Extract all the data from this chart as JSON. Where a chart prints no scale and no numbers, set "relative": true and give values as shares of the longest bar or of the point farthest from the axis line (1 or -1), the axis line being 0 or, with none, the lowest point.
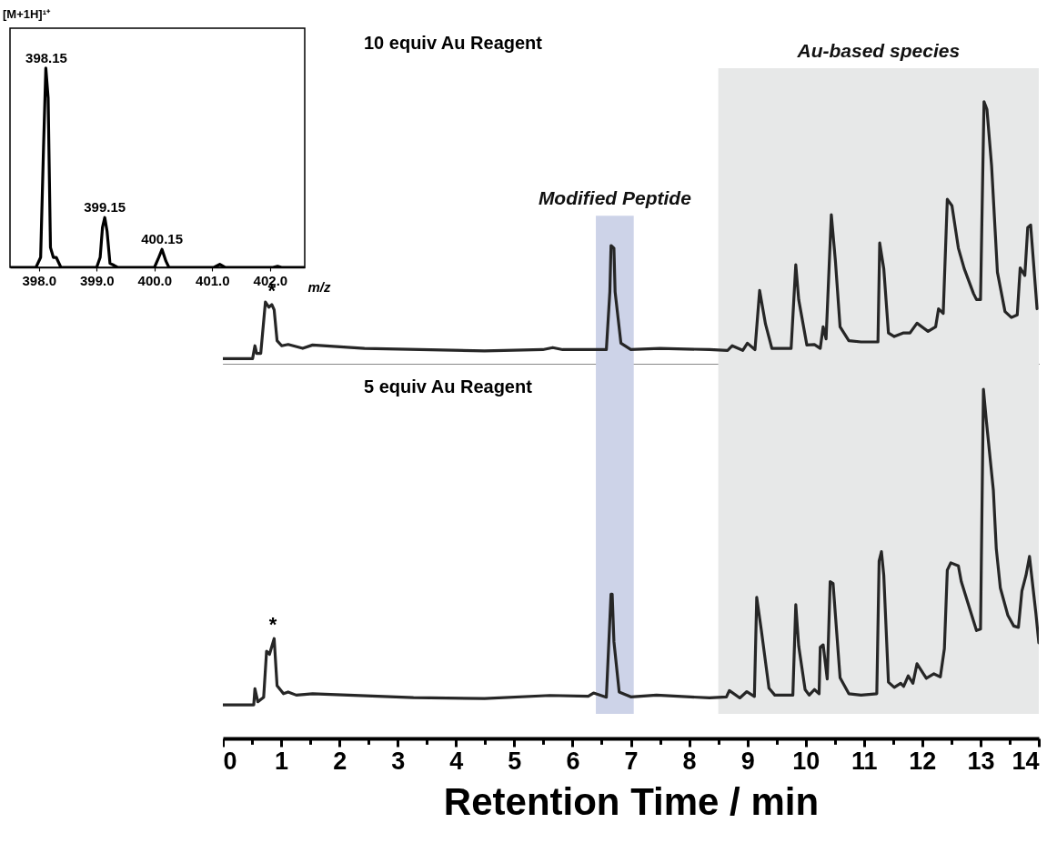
{
  "chart_data": [
    {
      "type": "line",
      "title": "[M+1H]¹⁺",
      "xlabel": "m/z",
      "relative": true,
      "xlim": [
        397.5,
        402.6
      ],
      "xticks": [
        {
          "value": 398,
          "label": "398.0"
        },
        {
          "value": 399,
          "label": "399.0"
        },
        {
          "value": 400,
          "label": "400.0"
        },
        {
          "value": 401,
          "label": "401.0"
        },
        {
          "value": 402,
          "label": "402.0"
        }
      ],
      "x": [
        397.5,
        397.95,
        398.03,
        398.08,
        398.12,
        398.16,
        398.2,
        398.25,
        398.3,
        398.38,
        399.0,
        399.06,
        399.1,
        399.14,
        399.18,
        399.23,
        399.3,
        399.36,
        400.0,
        400.06,
        400.13,
        400.2,
        400.25,
        401.03,
        401.13,
        401.22,
        402.05,
        402.13,
        402.2,
        402.6
      ],
      "series": [
        {
          "color": "#000000",
          "values": [
            0,
            0,
            0.05,
            0.6,
            1,
            0.85,
            0.1,
            0.05,
            0.05,
            0,
            0,
            0.05,
            0.2,
            0.25,
            0.18,
            0.02,
            0.01,
            0,
            0,
            0.04,
            0.09,
            0.03,
            0,
            0,
            0.015,
            0,
            0,
            0.005,
            0,
            0
          ]
        }
      ],
      "annotations": [
        {
          "text": "398.15",
          "x": 398.13,
          "y": 1
        },
        {
          "text": "399.15",
          "x": 399.14,
          "y": 0.25
        },
        {
          "text": "400.15",
          "x": 400.13,
          "y": 0.09
        }
      ]
    },
    {
      "type": "line",
      "title": "10 equiv Au Reagent",
      "relative": true,
      "xlim": [
        0,
        14
      ],
      "tick_labels": false,
      "x": [
        0,
        0.51,
        0.55,
        0.58,
        0.65,
        0.73,
        0.79,
        0.84,
        0.88,
        0.93,
        1.01,
        1.12,
        1.37,
        1.54,
        2.43,
        4.49,
        5.49,
        5.66,
        5.83,
        6.58,
        6.64,
        6.66,
        6.71,
        6.73,
        6.83,
        7.0,
        7.5,
        8.35,
        8.66,
        8.74,
        8.92,
        9.0,
        9.13,
        9.21,
        9.31,
        9.42,
        9.75,
        9.83,
        9.88,
        10.02,
        10.15,
        10.25,
        10.3,
        10.35,
        10.44,
        10.51,
        10.59,
        10.74,
        10.95,
        11.24,
        11.27,
        11.34,
        11.42,
        11.52,
        11.68,
        11.79,
        11.91,
        12.1,
        12.23,
        12.28,
        12.36,
        12.43,
        12.51,
        12.62,
        12.72,
        12.88,
        12.93,
        13.0,
        13.06,
        13.11,
        13.19,
        13.29,
        13.42,
        13.53,
        13.63,
        13.68,
        13.76,
        13.81,
        13.86,
        13.97
      ],
      "series": [
        {
          "color": "#262626",
          "values": [
            0,
            0,
            0.05,
            0.02,
            0.02,
            0.22,
            0.2,
            0.21,
            0.19,
            0.07,
            0.05,
            0.055,
            0.04,
            0.053,
            0.04,
            0.03,
            0.035,
            0.043,
            0.035,
            0.035,
            0.26,
            0.44,
            0.43,
            0.26,
            0.06,
            0.035,
            0.04,
            0.035,
            0.032,
            0.05,
            0.032,
            0.06,
            0.035,
            0.265,
            0.135,
            0.04,
            0.04,
            0.365,
            0.23,
            0.053,
            0.055,
            0.04,
            0.124,
            0.077,
            0.56,
            0.38,
            0.124,
            0.07,
            0.065,
            0.065,
            0.45,
            0.35,
            0.1,
            0.086,
            0.1,
            0.1,
            0.138,
            0.106,
            0.124,
            0.194,
            0.176,
            0.62,
            0.595,
            0.43,
            0.35,
            0.253,
            0.23,
            0.23,
            1,
            0.97,
            0.75,
            0.336,
            0.183,
            0.16,
            0.17,
            0.353,
            0.324,
            0.51,
            0.52,
            0.194
          ]
        }
      ],
      "bands": [
        {
          "axis": "x",
          "from": 6.4,
          "to": 7.05,
          "label": "Modified Peptide",
          "color": "#cdd3e8"
        },
        {
          "axis": "x",
          "from": 8.5,
          "to": 14,
          "label": "Au-based species",
          "color": "#e7e8e8"
        }
      ],
      "annotations": [
        {
          "text": "*",
          "x": 0.84,
          "y": 0.21
        }
      ]
    },
    {
      "type": "line",
      "title": "5 equiv Au Reagent",
      "xlabel": "Retention Time / min",
      "relative": true,
      "xlim": [
        0,
        14
      ],
      "tick_labels": "x",
      "xticks": [
        0,
        {
          "value": 0.5,
          "label": null
        },
        1,
        {
          "value": 1.5,
          "label": null
        },
        2,
        {
          "value": 2.5,
          "label": null
        },
        3,
        {
          "value": 3.5,
          "label": null
        },
        4,
        {
          "value": 4.5,
          "label": null
        },
        5,
        {
          "value": 5.5,
          "label": null
        },
        6,
        {
          "value": 6.5,
          "label": null
        },
        7,
        {
          "value": 7.5,
          "label": null
        },
        8,
        {
          "value": 8.5,
          "label": null
        },
        9,
        {
          "value": 9.5,
          "label": null
        },
        10,
        {
          "value": 10.5,
          "label": null
        },
        11,
        {
          "value": 11.5,
          "label": null
        },
        12,
        {
          "value": 12.5,
          "label": null
        },
        13,
        {
          "value": 13.5,
          "label": null
        },
        14
      ],
      "x": [
        0,
        0.53,
        0.55,
        0.6,
        0.7,
        0.75,
        0.8,
        0.88,
        0.93,
        1.04,
        1.12,
        1.26,
        1.54,
        3.27,
        4.49,
        5.61,
        6.27,
        6.36,
        6.58,
        6.66,
        6.68,
        6.71,
        6.8,
        7.0,
        7.44,
        8.35,
        8.64,
        8.69,
        8.87,
        8.99,
        9.12,
        9.16,
        9.24,
        9.37,
        9.47,
        9.78,
        9.83,
        9.88,
        9.99,
        10.06,
        10.15,
        10.23,
        10.25,
        10.3,
        10.37,
        10.42,
        10.47,
        10.59,
        10.74,
        10.95,
        11.22,
        11.26,
        11.3,
        11.34,
        11.42,
        11.52,
        11.63,
        11.68,
        11.76,
        11.84,
        11.91,
        12.07,
        12.2,
        12.31,
        12.38,
        12.43,
        12.49,
        12.62,
        12.67,
        12.77,
        12.93,
        13.0,
        13.05,
        13.1,
        13.16,
        13.22,
        13.27,
        13.34,
        13.47,
        13.57,
        13.65,
        13.71,
        13.78,
        13.84,
        13.95,
        14.0
      ],
      "series": [
        {
          "color": "#262626",
          "values": [
            0.096,
            0.096,
            0.142,
            0.105,
            0.118,
            0.25,
            0.241,
            0.286,
            0.151,
            0.128,
            0.133,
            0.124,
            0.128,
            0.117,
            0.114,
            0.123,
            0.121,
            0.13,
            0.118,
            0.413,
            0.413,
            0.277,
            0.133,
            0.119,
            0.124,
            0.116,
            0.119,
            0.137,
            0.116,
            0.134,
            0.12,
            0.404,
            0.309,
            0.144,
            0.124,
            0.124,
            0.383,
            0.265,
            0.14,
            0.124,
            0.14,
            0.128,
            0.261,
            0.268,
            0.17,
            0.449,
            0.444,
            0.174,
            0.128,
            0.124,
            0.128,
            0.508,
            0.535,
            0.467,
            0.161,
            0.146,
            0.158,
            0.149,
            0.179,
            0.158,
            0.214,
            0.172,
            0.185,
            0.176,
            0.257,
            0.482,
            0.503,
            0.494,
            0.449,
            0.395,
            0.309,
            0.313,
            1,
            0.91,
            0.81,
            0.711,
            0.544,
            0.431,
            0.352,
            0.322,
            0.318,
            0.422,
            0.467,
            0.521,
            0.358,
            0.274
          ]
        }
      ],
      "bands": [
        {
          "axis": "x",
          "from": 6.4,
          "to": 7.05,
          "color": "#cdd3e8"
        },
        {
          "axis": "x",
          "from": 8.5,
          "to": 14,
          "color": "#e7e8e8"
        }
      ],
      "annotations": [
        {
          "text": "*",
          "x": 0.86,
          "y": 0.286
        }
      ]
    }
  ]
}
